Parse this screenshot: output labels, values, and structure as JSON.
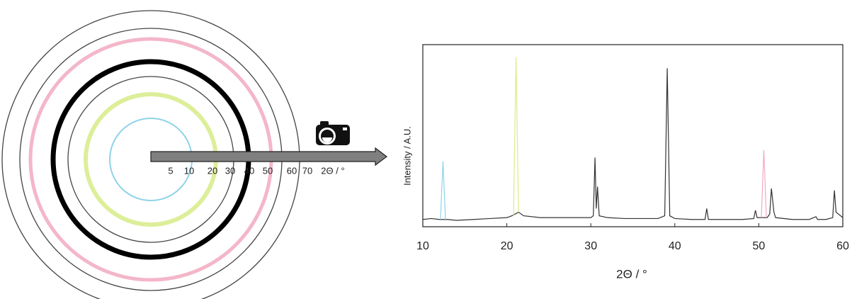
{
  "diagram": {
    "ring_labels": [
      "5",
      "10",
      "20",
      "30",
      "40",
      "50",
      "60",
      "70"
    ],
    "axis_label": "2Θ / °"
  },
  "chart_data": {
    "type": "line",
    "xlabel": "2Θ / °",
    "ylabel": "Intensity / A.U.",
    "xlim": [
      10,
      60
    ],
    "xticks": [
      10,
      20,
      30,
      40,
      50,
      60
    ],
    "ylim": [
      0,
      100
    ],
    "series": [
      {
        "color": "#333333",
        "x": [
          10,
          11,
          12,
          13,
          14,
          16,
          18,
          20,
          20.6,
          21.4,
          22,
          24,
          26,
          28,
          30,
          30.3,
          30.5,
          30.65,
          30.8,
          31,
          32,
          34,
          36,
          38,
          38.8,
          39.1,
          39.4,
          40,
          42,
          43.6,
          43.8,
          44,
          46,
          48,
          49.4,
          49.6,
          49.8,
          51,
          51.3,
          51.5,
          51.8,
          52,
          54,
          56,
          56.8,
          57,
          58,
          58.8,
          59,
          59.2,
          60
        ],
        "values": [
          4,
          4.5,
          4,
          4,
          3.5,
          4,
          4.5,
          5,
          6,
          8,
          6,
          5,
          5,
          5,
          5,
          6,
          38,
          10,
          22,
          6,
          5,
          4.5,
          4.5,
          4.5,
          6,
          87,
          6,
          4.5,
          4,
          4,
          10,
          4,
          4,
          4,
          4.5,
          9,
          5,
          5,
          7,
          21,
          8,
          5,
          4,
          4,
          5.5,
          4,
          4,
          5,
          20,
          8,
          5
        ]
      },
      {
        "color": "#8fd3e8",
        "x": [
          12.1,
          12.4,
          12.7
        ],
        "values": [
          4,
          36,
          4
        ]
      },
      {
        "color": "#d9ec8a",
        "x": [
          20.8,
          21.1,
          21.4
        ],
        "values": [
          6,
          93,
          8
        ]
      },
      {
        "color": "#f2a9c4",
        "x": [
          50.3,
          50.6,
          50.9
        ],
        "values": [
          5,
          42,
          5
        ]
      }
    ]
  }
}
